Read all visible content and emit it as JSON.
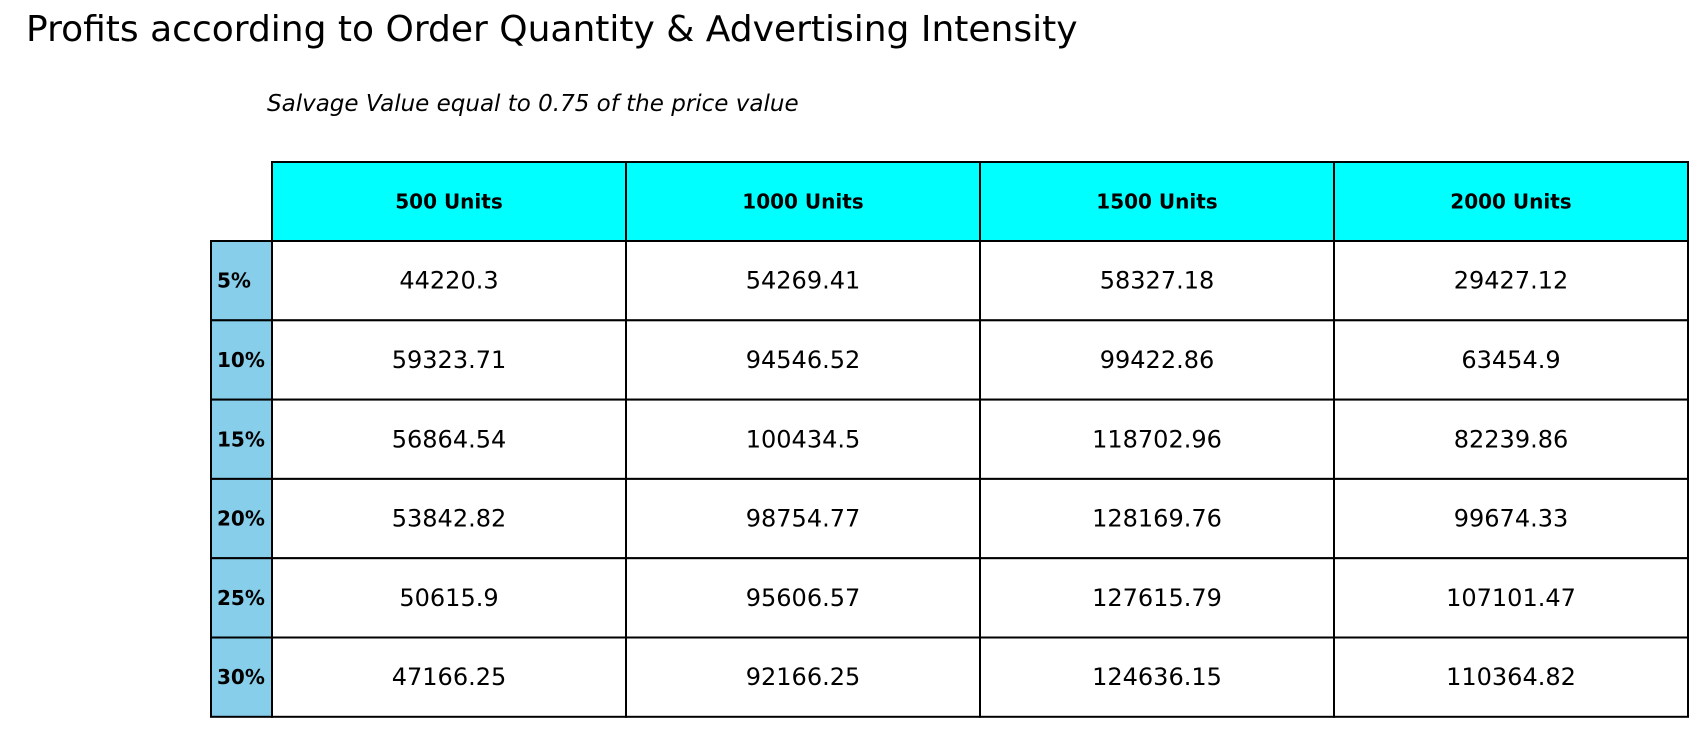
{
  "title": "Profits according to Order Quantity & Advertising Intensity",
  "subtitle": "Salvage Value equal to 0.75 of the price value",
  "chart_data": {
    "type": "table",
    "title": "Profits according to Order Quantity & Advertising Intensity",
    "subtitle": "Salvage Value equal to 0.75 of the price value",
    "column_headers": [
      "500 Units",
      "1000 Units",
      "1500 Units",
      "2000 Units"
    ],
    "row_headers": [
      "5%",
      "10%",
      "15%",
      "20%",
      "25%",
      "30%"
    ],
    "cells": [
      [
        "44220.3",
        "54269.41",
        "58327.18",
        "29427.12"
      ],
      [
        "59323.71",
        "94546.52",
        "99422.86",
        "63454.9"
      ],
      [
        "56864.54",
        "100434.5",
        "118702.96",
        "82239.86"
      ],
      [
        "53842.82",
        "98754.77",
        "128169.76",
        "99674.33"
      ],
      [
        "50615.9",
        "95606.57",
        "127615.79",
        "107101.47"
      ],
      [
        "47166.25",
        "92166.25",
        "124636.15",
        "110364.82"
      ]
    ],
    "colors": {
      "column_header_fill": "#00ffff",
      "row_header_fill": "#87ceeb",
      "cell_fill": "#ffffff",
      "border": "#000000"
    }
  }
}
